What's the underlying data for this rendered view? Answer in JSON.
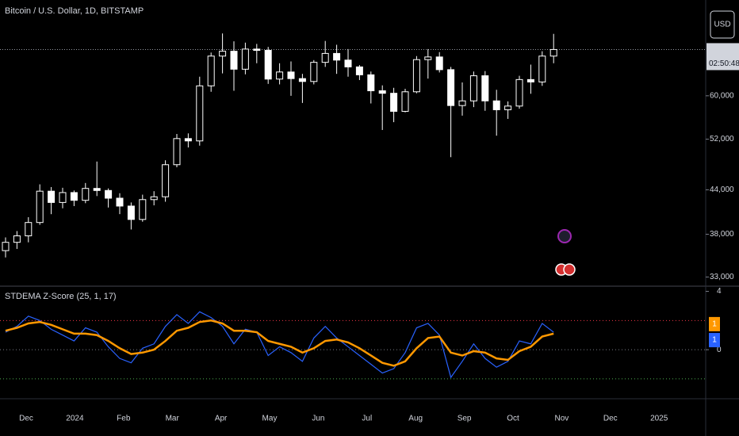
{
  "toolbar": {
    "currency": "USD"
  },
  "chart_data": [
    {
      "type": "candlestick",
      "title": "Bitcoin / U.S. Dollar, 1D, BITSTAMP",
      "log_scale": true,
      "color": "#ffffff",
      "open": [
        36000,
        37000,
        37800,
        39500,
        43800,
        42200,
        43600,
        42500,
        44200,
        43900,
        42800,
        41700,
        39900,
        42600,
        43000,
        47800,
        52100,
        51700,
        62000,
        68400,
        69500,
        65500,
        70000,
        69700,
        63400,
        64900,
        63500,
        62900,
        67000,
        69000,
        67500,
        66000,
        64300,
        61000,
        60500,
        57000,
        60800,
        67600,
        68200,
        65400,
        58100,
        59000,
        64100,
        59000,
        57300,
        58000,
        63300,
        62800,
        68400
      ],
      "high": [
        37600,
        38400,
        40200,
        44800,
        44400,
        44300,
        43900,
        45000,
        48300,
        44200,
        43500,
        42200,
        43300,
        43800,
        48500,
        52900,
        53000,
        63900,
        69200,
        73700,
        71800,
        71500,
        71200,
        70500,
        66800,
        67200,
        64500,
        67500,
        71900,
        71000,
        70000,
        66400,
        65000,
        62100,
        61600,
        61400,
        68400,
        70000,
        69300,
        66000,
        62700,
        65000,
        65100,
        61200,
        58900,
        64100,
        66500,
        69500,
        73600
      ],
      "low": [
        35200,
        36200,
        37000,
        39200,
        40600,
        41400,
        41700,
        42100,
        43100,
        41500,
        40600,
        38600,
        39600,
        41800,
        42300,
        47400,
        50600,
        50900,
        60800,
        64600,
        61000,
        64400,
        66800,
        62400,
        62300,
        60000,
        58600,
        62300,
        66000,
        64500,
        63900,
        63200,
        58500,
        53600,
        55000,
        56800,
        60500,
        63500,
        64800,
        49000,
        56200,
        57800,
        57100,
        52600,
        55600,
        57500,
        60400,
        62000,
        66800
      ],
      "close": [
        37000,
        37800,
        39500,
        43800,
        42200,
        43600,
        42500,
        44200,
        43900,
        42800,
        41700,
        39900,
        42600,
        43000,
        47800,
        52100,
        51700,
        62000,
        68400,
        69500,
        65500,
        70000,
        69700,
        63400,
        64900,
        63500,
        62900,
        67000,
        69000,
        67500,
        66000,
        64300,
        61000,
        60500,
        57000,
        60800,
        67600,
        68200,
        65400,
        58100,
        59000,
        64100,
        59000,
        57300,
        58000,
        63300,
        62800,
        68400,
        69900
      ],
      "price_line": 69900,
      "countdown": "02:50:48",
      "ylim": [
        32100,
        82300
      ],
      "yticks": [
        {
          "value": 33000,
          "label": "33,000"
        },
        {
          "value": 38000,
          "label": "38,000"
        },
        {
          "value": 44000,
          "label": "44,000"
        },
        {
          "value": 52000,
          "label": "52,000"
        },
        {
          "value": 60000,
          "label": "60,000"
        }
      ]
    },
    {
      "type": "line",
      "title": "STDEMA Z-Score (25, 1, 17)",
      "series": [
        {
          "color": "#2962ff",
          "values": [
            1.2,
            1.6,
            2.3,
            2.0,
            1.4,
            1.0,
            0.6,
            1.5,
            1.2,
            0.2,
            -0.6,
            -0.9,
            0.1,
            0.4,
            1.6,
            2.4,
            1.8,
            2.6,
            2.2,
            1.6,
            0.4,
            1.4,
            1.2,
            -0.4,
            0.2,
            -0.2,
            -0.8,
            0.8,
            1.6,
            0.8,
            0.2,
            -0.4,
            -1.0,
            -1.6,
            -1.3,
            -0.2,
            1.5,
            1.8,
            1.0,
            -1.9,
            -0.8,
            0.4,
            -0.6,
            -1.2,
            -0.8,
            0.6,
            0.4,
            1.8,
            1.2
          ],
          "last_label": "1"
        },
        {
          "color": "#ff9800",
          "values": [
            1.3,
            1.5,
            1.8,
            1.9,
            1.7,
            1.4,
            1.1,
            1.1,
            1.0,
            0.6,
            0.1,
            -0.3,
            -0.2,
            0.0,
            0.6,
            1.3,
            1.5,
            1.9,
            2.0,
            1.8,
            1.3,
            1.3,
            1.2,
            0.6,
            0.4,
            0.2,
            -0.2,
            0.1,
            0.6,
            0.7,
            0.5,
            0.1,
            -0.4,
            -0.9,
            -1.1,
            -0.8,
            0.1,
            0.8,
            0.9,
            -0.2,
            -0.4,
            -0.1,
            -0.2,
            -0.6,
            -0.7,
            -0.1,
            0.2,
            0.9,
            1.1
          ],
          "last_label": "1"
        }
      ],
      "levels": [
        {
          "value": 2,
          "color": "#f23645"
        },
        {
          "value": 0,
          "color": "#787b86"
        },
        {
          "value": -2,
          "color": "#4caf50"
        }
      ],
      "ylim": [
        -3.2,
        4.3
      ],
      "yticks": [
        0,
        4
      ],
      "xtick_labels": [
        "Dec",
        "2024",
        "Feb",
        "Mar",
        "Apr",
        "May",
        "Jun",
        "Jul",
        "Aug",
        "Sep",
        "Oct",
        "Nov",
        "Dec",
        "2025"
      ]
    }
  ]
}
